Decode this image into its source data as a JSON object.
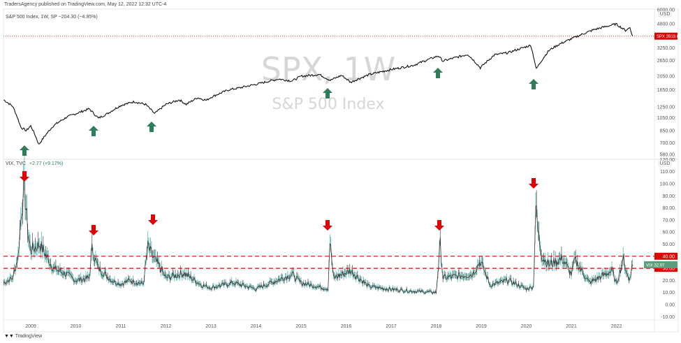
{
  "header": {
    "published": "TradersAgency published on TradingView.com, May 12, 2022 12:32 UTC-4",
    "spx_legend": "S&P 500 Index, 1W, SP  −204.30 (−4.95%)",
    "vix_legend_name": "VIX, TVC",
    "vix_legend_change": "+2.77 (+9.17%)"
  },
  "watermark": {
    "symbol": "SPX, 1W",
    "name": "S&P 500 Index"
  },
  "footer": {
    "brand": "TradingView",
    "logo": "TV"
  },
  "colors": {
    "up_arrow": "#2e7d5b",
    "down_arrow": "#e00000",
    "level_line": "#e00000",
    "spx_label": "#e00000",
    "vix_label": "#5c9e7a",
    "line": "#111111"
  },
  "chart_data": [
    {
      "type": "line",
      "title": "S&P 500 Index, 1W",
      "scale": "log",
      "currency": "USD",
      "y_ticks": [
        "6000.00",
        "4800.00",
        "3250.00",
        "2650.00",
        "2050.00",
        "1650.00",
        "1250.00",
        "1050.00",
        "850.00",
        "700.00",
        "580.00"
      ],
      "y_tick_values": [
        6000,
        4800,
        3250,
        2650,
        2050,
        1650,
        1250,
        1050,
        850,
        700,
        580
      ],
      "last_label": {
        "symbol": "SPX",
        "value": "3919.05"
      },
      "last_value": 3919.05,
      "series": [
        {
          "name": "SPX",
          "x": [
            2008.4,
            2008.6,
            2008.78,
            2008.9,
            2009.0,
            2009.18,
            2009.5,
            2009.8,
            2010.0,
            2010.3,
            2010.5,
            2010.7,
            2011.0,
            2011.3,
            2011.55,
            2011.75,
            2012.0,
            2012.3,
            2012.45,
            2012.7,
            2012.9,
            2013.0,
            2013.4,
            2013.6,
            2014.0,
            2014.5,
            2014.8,
            2015.0,
            2015.4,
            2015.65,
            2015.9,
            2016.1,
            2016.5,
            2016.9,
            2017.5,
            2018.05,
            2018.15,
            2018.7,
            2018.98,
            2019.3,
            2019.6,
            2020.1,
            2020.22,
            2020.5,
            2020.7,
            2021.0,
            2021.5,
            2021.99,
            2022.2,
            2022.3,
            2022.36
          ],
          "values": [
            1400,
            1260,
            900,
            850,
            920,
            680,
            920,
            1060,
            1120,
            1210,
            1040,
            1120,
            1280,
            1360,
            1300,
            1120,
            1300,
            1400,
            1300,
            1450,
            1390,
            1460,
            1650,
            1690,
            1800,
            1960,
            1900,
            2050,
            2110,
            1920,
            2080,
            1860,
            2100,
            2250,
            2450,
            2850,
            2620,
            2920,
            2350,
            2900,
            3000,
            3380,
            2300,
            3100,
            3400,
            3750,
            4350,
            4770,
            4300,
            4500,
            3919
          ]
        }
      ]
    },
    {
      "type": "line",
      "title": "VIX, TVC",
      "currency": "USD",
      "y_ticks": [
        "120.00",
        "110.00",
        "100.00",
        "90.00",
        "80.00",
        "70.00",
        "60.00",
        "50.00",
        "20.00",
        "10.00",
        "0.00",
        "-10.00"
      ],
      "y_tick_values": [
        120,
        110,
        100,
        90,
        80,
        70,
        60,
        50,
        20,
        10,
        0,
        -10
      ],
      "ylim": [
        -10,
        120
      ],
      "levels": [
        {
          "label": "40.00",
          "value": 40
        },
        {
          "label": "30.00",
          "value": 30
        }
      ],
      "last_label": {
        "symbol": "VIX",
        "value": "32.97"
      },
      "last_value": 32.97,
      "series": [
        {
          "name": "VIX",
          "x": [
            2008.4,
            2008.6,
            2008.72,
            2008.8,
            2008.86,
            2008.95,
            2009.0,
            2009.2,
            2009.5,
            2009.8,
            2010.0,
            2010.3,
            2010.36,
            2010.5,
            2010.8,
            2011.0,
            2011.2,
            2011.5,
            2011.6,
            2011.7,
            2011.85,
            2012.0,
            2012.4,
            2012.8,
            2013.0,
            2013.5,
            2014.0,
            2014.8,
            2015.0,
            2015.6,
            2015.64,
            2015.72,
            2016.1,
            2016.5,
            2016.9,
            2017.5,
            2018.0,
            2018.09,
            2018.15,
            2018.8,
            2018.98,
            2019.2,
            2019.6,
            2020.0,
            2020.16,
            2020.21,
            2020.26,
            2020.35,
            2020.5,
            2020.8,
            2021.0,
            2021.08,
            2021.4,
            2021.65,
            2021.9,
            2022.0,
            2022.15,
            2022.28,
            2022.36
          ],
          "values": [
            18,
            22,
            40,
            80,
            96,
            55,
            45,
            50,
            30,
            25,
            20,
            22,
            46,
            30,
            20,
            17,
            20,
            17,
            48,
            40,
            32,
            22,
            26,
            16,
            14,
            18,
            13,
            25,
            18,
            13,
            53,
            22,
            28,
            15,
            13,
            11,
            10,
            50,
            22,
            25,
            36,
            16,
            20,
            13,
            15,
            82,
            60,
            40,
            33,
            38,
            25,
            37,
            18,
            23,
            28,
            17,
            37,
            20,
            33
          ]
        }
      ]
    },
    {
      "type": "axis",
      "x_ticks": [
        "2009",
        "2010",
        "2011",
        "2012",
        "2013",
        "2014",
        "2015",
        "2016",
        "2017",
        "2018",
        "2019",
        "2020",
        "2021",
        "2022"
      ]
    }
  ],
  "annotations": {
    "up_arrows_at": [
      2008.85,
      2010.4,
      2011.7,
      2015.6,
      2018.05,
      2020.2
    ],
    "down_arrows_at": [
      2008.85,
      2010.4,
      2011.7,
      2015.6,
      2018.05,
      2020.2
    ]
  }
}
